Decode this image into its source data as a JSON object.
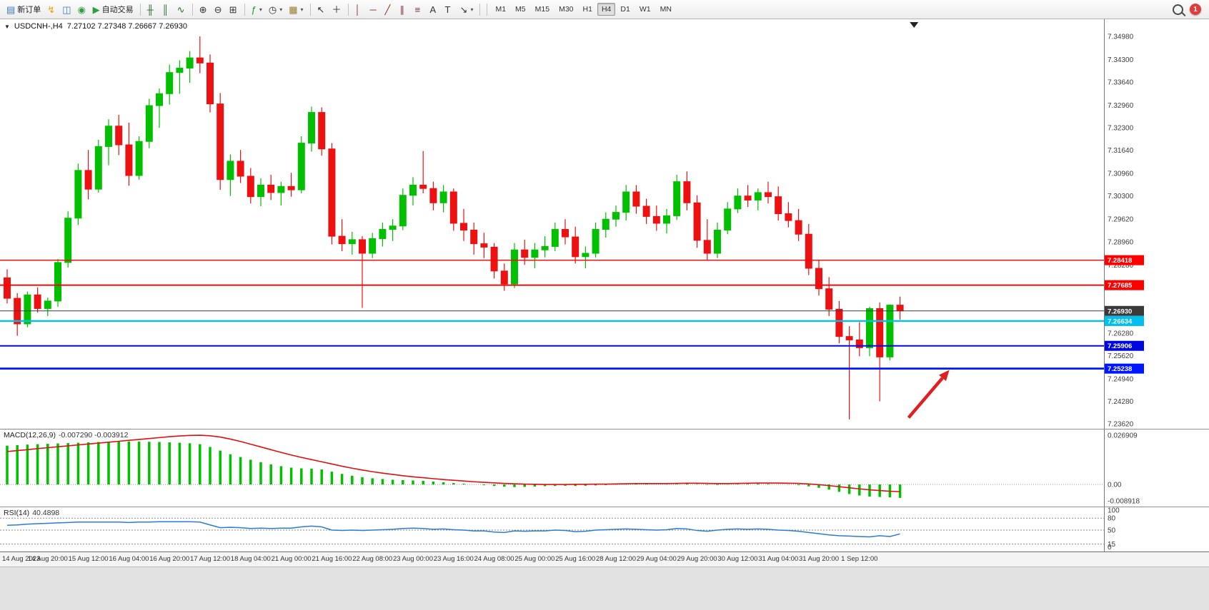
{
  "toolbar": {
    "buttons": [
      {
        "name": "new-order",
        "glyph": "▤",
        "glyph_color": "#3a78c2",
        "label": "新订单"
      },
      {
        "name": "one-click-trading",
        "glyph": "↯",
        "glyph_color": "#e8a000"
      },
      {
        "name": "market-watch",
        "glyph": "◫",
        "glyph_color": "#3a78c2"
      },
      {
        "name": "navigator",
        "glyph": "◉",
        "glyph_color": "#2f9e44"
      },
      {
        "name": "auto-trading",
        "glyph": "▶",
        "glyph_color": "#2f9e44",
        "label": "自动交易"
      },
      {
        "sep": true
      },
      {
        "name": "bar-chart-mode",
        "glyph": "╫",
        "glyph_color": "#2d6a2d"
      },
      {
        "name": "candlestick-mode",
        "glyph": "║",
        "glyph_color": "#2d6a2d"
      },
      {
        "name": "line-chart-mode",
        "glyph": "∿",
        "glyph_color": "#2d6a2d"
      },
      {
        "sep": true
      },
      {
        "name": "zoom-in",
        "glyph": "⊕",
        "glyph_color": "#333333"
      },
      {
        "name": "zoom-out",
        "glyph": "⊖",
        "glyph_color": "#333333"
      },
      {
        "name": "tile-windows",
        "glyph": "⊞",
        "glyph_color": "#333333"
      },
      {
        "sep": true
      },
      {
        "name": "indicators",
        "glyph": "ƒ",
        "glyph_color": "#1a9e1a",
        "dropdown": true
      },
      {
        "name": "periods",
        "glyph": "◷",
        "glyph_color": "#333333",
        "dropdown": true
      },
      {
        "name": "templates",
        "glyph": "▦",
        "glyph_color": "#9a7b2f",
        "dropdown": true
      },
      {
        "sep": true
      },
      {
        "name": "cursor",
        "glyph": "↖",
        "glyph_color": "#333333"
      },
      {
        "name": "crosshair",
        "glyph": "＋",
        "glyph_color": "#333333"
      },
      {
        "sep": true
      },
      {
        "name": "vertical-line",
        "glyph": "│",
        "glyph_color": "#8a2f2f"
      },
      {
        "name": "horizontal-line",
        "glyph": "─",
        "glyph_color": "#8a2f2f"
      },
      {
        "name": "trendline",
        "glyph": "╱",
        "glyph_color": "#8a2f2f"
      },
      {
        "name": "equidistant-channel",
        "glyph": "∥",
        "glyph_color": "#8a2f2f"
      },
      {
        "name": "fibonacci",
        "glyph": "≡",
        "glyph_color": "#8a2f2f"
      },
      {
        "name": "text",
        "glyph": "A",
        "glyph_color": "#333333"
      },
      {
        "name": "text-label",
        "glyph": "T",
        "glyph_color": "#333333"
      },
      {
        "name": "arrows",
        "glyph": "↘",
        "glyph_color": "#333333",
        "dropdown": true
      },
      {
        "sep": true
      }
    ],
    "timeframes": [
      "M1",
      "M5",
      "M15",
      "M30",
      "H1",
      "H4",
      "D1",
      "W1",
      "MN"
    ],
    "active_timeframe": "H4",
    "badge_count": "1"
  },
  "chart": {
    "symbol_period": "USDCNH-,H4",
    "ohlc": "7.27102 7.27348 7.26667 7.26930",
    "colors": {
      "bull": "#00c000",
      "bear": "#ee1111",
      "axis_line": "#777777",
      "current_price": "#3a3a3a"
    }
  },
  "indicators": {
    "macd": {
      "name": "MACD(12,26,9)",
      "values": "-0.007290 -0.003912"
    },
    "rsi": {
      "name": "RSI(14)",
      "value": "40.4898"
    }
  },
  "chart_data": [
    {
      "type": "candlestick",
      "symbol": "USDCNH-",
      "timeframe": "H4",
      "ohlc_order": [
        "open",
        "high",
        "low",
        "close"
      ],
      "candles": [
        [
          7.279,
          7.2815,
          7.2715,
          7.273
        ],
        [
          7.273,
          7.2745,
          7.262,
          7.2655
        ],
        [
          7.2655,
          7.275,
          7.2645,
          7.274
        ],
        [
          7.274,
          7.2762,
          7.2688,
          7.27
        ],
        [
          7.27,
          7.2732,
          7.2678,
          7.2722
        ],
        [
          7.2722,
          7.2845,
          7.2705,
          7.2835
        ],
        [
          7.2835,
          7.2985,
          7.282,
          7.2965
        ],
        [
          7.2965,
          7.3125,
          7.2945,
          7.3105
        ],
        [
          7.3105,
          7.3165,
          7.302,
          7.305
        ],
        [
          7.305,
          7.3195,
          7.304,
          7.3175
        ],
        [
          7.3175,
          7.3255,
          7.312,
          7.3235
        ],
        [
          7.3235,
          7.3268,
          7.315,
          7.318
        ],
        [
          7.318,
          7.3245,
          7.306,
          7.309
        ],
        [
          7.309,
          7.3205,
          7.3078,
          7.319
        ],
        [
          7.319,
          7.3315,
          7.317,
          7.3295
        ],
        [
          7.3295,
          7.3345,
          7.323,
          7.333
        ],
        [
          7.333,
          7.3415,
          7.3298,
          7.3392
        ],
        [
          7.3392,
          7.3428,
          7.333,
          7.3405
        ],
        [
          7.3405,
          7.3455,
          7.3362,
          7.3435
        ],
        [
          7.3435,
          7.3498,
          7.339,
          7.342
        ],
        [
          7.342,
          7.3445,
          7.3275,
          7.33
        ],
        [
          7.33,
          7.3332,
          7.3048,
          7.3078
        ],
        [
          7.3078,
          7.3152,
          7.303,
          7.3132
        ],
        [
          7.3132,
          7.3165,
          7.3068,
          7.3088
        ],
        [
          7.3088,
          7.3112,
          7.3008,
          7.3028
        ],
        [
          7.3028,
          7.3082,
          7.3,
          7.3062
        ],
        [
          7.3062,
          7.3092,
          7.3018,
          7.304
        ],
        [
          7.304,
          7.3072,
          7.3002,
          7.3058
        ],
        [
          7.3058,
          7.3098,
          7.3028,
          7.3048
        ],
        [
          7.3048,
          7.3205,
          7.3038,
          7.3185
        ],
        [
          7.3185,
          7.3292,
          7.316,
          7.3275
        ],
        [
          7.3275,
          7.329,
          7.3148,
          7.3168
        ],
        [
          7.3168,
          7.3185,
          7.2888,
          7.2912
        ],
        [
          7.2912,
          7.2962,
          7.2868,
          7.289
        ],
        [
          7.289,
          7.2925,
          7.2858,
          7.2902
        ],
        [
          7.2902,
          7.2912,
          7.2702,
          7.2862
        ],
        [
          7.2862,
          7.2922,
          7.2848,
          7.2905
        ],
        [
          7.2905,
          7.2952,
          7.2882,
          7.2932
        ],
        [
          7.2932,
          7.2962,
          7.2898,
          7.2942
        ],
        [
          7.2942,
          7.3052,
          7.293,
          7.3032
        ],
        [
          7.3032,
          7.3085,
          7.3002,
          7.3062
        ],
        [
          7.3062,
          7.3162,
          7.3038,
          7.3052
        ],
        [
          7.3052,
          7.3072,
          7.2988,
          7.301
        ],
        [
          7.301,
          7.3062,
          7.2982,
          7.3042
        ],
        [
          7.3042,
          7.3052,
          7.2928,
          7.295
        ],
        [
          7.295,
          7.2992,
          7.2898,
          7.293
        ],
        [
          7.293,
          7.2952,
          7.2858,
          7.289
        ],
        [
          7.289,
          7.2922,
          7.2848,
          7.288
        ],
        [
          7.288,
          7.2892,
          7.2788,
          7.281
        ],
        [
          7.281,
          7.2832,
          7.2752,
          7.2772
        ],
        [
          7.2772,
          7.2892,
          7.276,
          7.2872
        ],
        [
          7.2872,
          7.2902,
          7.2828,
          7.285
        ],
        [
          7.285,
          7.2892,
          7.2818,
          7.2872
        ],
        [
          7.2872,
          7.2912,
          7.285,
          7.2882
        ],
        [
          7.2882,
          7.2952,
          7.2868,
          7.2932
        ],
        [
          7.2932,
          7.2962,
          7.2888,
          7.291
        ],
        [
          7.291,
          7.294,
          7.2832,
          7.2852
        ],
        [
          7.2852,
          7.2882,
          7.2818,
          7.2862
        ],
        [
          7.2862,
          7.2952,
          7.285,
          7.2932
        ],
        [
          7.2932,
          7.2982,
          7.2908,
          7.2962
        ],
        [
          7.2962,
          7.3002,
          7.294,
          7.2982
        ],
        [
          7.2982,
          7.3062,
          7.2958,
          7.3042
        ],
        [
          7.3042,
          7.3062,
          7.2978,
          7.3
        ],
        [
          7.3,
          7.3022,
          7.2948,
          7.297
        ],
        [
          7.297,
          7.3002,
          7.2928,
          7.295
        ],
        [
          7.295,
          7.2992,
          7.292,
          7.2972
        ],
        [
          7.2972,
          7.3092,
          7.296,
          7.3072
        ],
        [
          7.3072,
          7.3102,
          7.2988,
          7.301
        ],
        [
          7.301,
          7.3032,
          7.2878,
          7.29
        ],
        [
          7.29,
          7.2962,
          7.284,
          7.2862
        ],
        [
          7.2862,
          7.2952,
          7.2848,
          7.293
        ],
        [
          7.293,
          7.3012,
          7.2918,
          7.2992
        ],
        [
          7.2992,
          7.3052,
          7.298,
          7.303
        ],
        [
          7.303,
          7.3062,
          7.2998,
          7.3018
        ],
        [
          7.3018,
          7.3052,
          7.2988,
          7.304
        ],
        [
          7.304,
          7.3072,
          7.3008,
          7.3028
        ],
        [
          7.3028,
          7.3058,
          7.2958,
          7.2978
        ],
        [
          7.2978,
          7.3012,
          7.2938,
          7.2958
        ],
        [
          7.2958,
          7.2992,
          7.2898,
          7.2918
        ],
        [
          7.2918,
          7.2948,
          7.2798,
          7.2818
        ],
        [
          7.2818,
          7.2842,
          7.2738,
          7.2758
        ],
        [
          7.2758,
          7.2792,
          7.2678,
          7.2698
        ],
        [
          7.2698,
          7.2722,
          7.2598,
          7.2618
        ],
        [
          7.2618,
          7.2648,
          7.2375,
          7.2608
        ],
        [
          7.2608,
          7.266,
          7.256,
          7.2585
        ],
        [
          7.2585,
          7.2705,
          7.256,
          7.27
        ],
        [
          7.27,
          7.2718,
          7.2428,
          7.2558
        ],
        [
          7.2558,
          7.2712,
          7.2548,
          7.271
        ],
        [
          7.271,
          7.2735,
          7.2667,
          7.2693
        ]
      ],
      "x_labels": [
        "14 Aug 2023",
        "14 Aug 20:00",
        "15 Aug 12:00",
        "16 Aug 04:00",
        "16 Aug 20:00",
        "17 Aug 12:00",
        "18 Aug 04:00",
        "21 Aug 00:00",
        "21 Aug 16:00",
        "22 Aug 08:00",
        "23 Aug 00:00",
        "23 Aug 16:00",
        "24 Aug 08:00",
        "25 Aug 00:00",
        "25 Aug 16:00",
        "28 Aug 12:00",
        "29 Aug 04:00",
        "29 Aug 20:00",
        "30 Aug 12:00",
        "31 Aug 04:00",
        "31 Aug 20:00",
        "1 Sep 12:00"
      ],
      "x_label_every": 4,
      "y_axis": {
        "min": 7.2362,
        "max": 7.3498,
        "ticks": [
          "7.34980",
          "7.34300",
          "7.33640",
          "7.32960",
          "7.32300",
          "7.31640",
          "7.30960",
          "7.30300",
          "7.29620",
          "7.28960",
          "7.28280",
          "7.27620",
          "7.26960",
          "7.26280",
          "7.25620",
          "7.24940",
          "7.24280",
          "7.23620"
        ]
      },
      "hlines": [
        {
          "price": 7.28418,
          "label": "7.28418",
          "color": "#ff0000",
          "width": 1.4
        },
        {
          "price": 7.27685,
          "label": "7.27685",
          "color": "#ff0000",
          "width": 1.8
        },
        {
          "price": 7.2693,
          "label": "7.26930",
          "color": "#3a3a3a",
          "width": 1.0,
          "role": "current-price"
        },
        {
          "price": 7.26634,
          "label": "7.26634",
          "color": "#00c0f0",
          "width": 2.4
        },
        {
          "price": 7.25906,
          "label": "7.25906",
          "color": "#0008e0",
          "width": 2.0
        },
        {
          "price": 7.25238,
          "label": "7.25238",
          "color": "#0018ff",
          "width": 2.8
        }
      ],
      "arrow": {
        "color": "#e02020",
        "width": 4.5,
        "tail": {
          "xf": 0.823,
          "price": 7.238
        },
        "tip": {
          "xf": 0.86,
          "price": 7.252
        }
      },
      "shift_marker_xf": 0.828
    },
    {
      "type": "bar+line",
      "name": "MACD(12,26,9)",
      "current_values": "-0.007290 -0.003912",
      "hist_color": "#00c000",
      "signal_color": "#e01010",
      "ylim": [
        -0.008918,
        0.026909
      ],
      "yticks": [
        "0.026909",
        "0.00",
        "-0.008918"
      ],
      "histogram": [
        0.0212,
        0.0215,
        0.0218,
        0.022,
        0.0222,
        0.0224,
        0.0226,
        0.0228,
        0.023,
        0.0232,
        0.0234,
        0.0235,
        0.0235,
        0.0234,
        0.0233,
        0.0232,
        0.023,
        0.0228,
        0.0225,
        0.022,
        0.0205,
        0.0185,
        0.0165,
        0.015,
        0.0135,
        0.0122,
        0.011,
        0.01,
        0.0092,
        0.0088,
        0.0086,
        0.0082,
        0.007,
        0.0058,
        0.0048,
        0.004,
        0.0034,
        0.003,
        0.0026,
        0.0024,
        0.0022,
        0.002,
        0.0016,
        0.0012,
        0.0008,
        0.0004,
        0.0,
        -0.0004,
        -0.0008,
        -0.0012,
        -0.0014,
        -0.0013,
        -0.0011,
        -0.0009,
        -0.0008,
        -0.0007,
        -0.0008,
        -0.0007,
        -0.0005,
        -0.0003,
        -0.0001,
        0.0002,
        0.0003,
        0.0002,
        0.0,
        -0.0001,
        0.0002,
        0.0004,
        0.0002,
        -0.0002,
        -0.0003,
        -0.0001,
        0.0002,
        0.0003,
        0.0004,
        0.0003,
        0.0001,
        -0.0001,
        -0.0004,
        -0.001,
        -0.0018,
        -0.0028,
        -0.004,
        -0.0052,
        -0.006,
        -0.0066,
        -0.0068,
        -0.007,
        -0.0073
      ],
      "signal": [
        0.018,
        0.0185,
        0.019,
        0.0196,
        0.0201,
        0.0206,
        0.0211,
        0.0216,
        0.0221,
        0.0226,
        0.0231,
        0.0236,
        0.0241,
        0.0246,
        0.0251,
        0.0256,
        0.0261,
        0.0265,
        0.0268,
        0.0269,
        0.0266,
        0.0259,
        0.0248,
        0.0235,
        0.022,
        0.0205,
        0.019,
        0.0175,
        0.0161,
        0.0148,
        0.0136,
        0.0124,
        0.0112,
        0.01,
        0.0089,
        0.0079,
        0.007,
        0.0062,
        0.0055,
        0.0048,
        0.0042,
        0.0037,
        0.0032,
        0.0027,
        0.0023,
        0.0019,
        0.0015,
        0.0012,
        0.0009,
        0.0006,
        0.0004,
        0.0002,
        0.0001,
        0.0,
        0.0,
        0.0,
        0.0001,
        0.0001,
        0.0002,
        0.0002,
        0.0003,
        0.0004,
        0.0005,
        0.0005,
        0.0005,
        0.0005,
        0.0006,
        0.0007,
        0.0007,
        0.0006,
        0.0005,
        0.0005,
        0.0006,
        0.0007,
        0.0008,
        0.0008,
        0.0008,
        0.0007,
        0.0006,
        0.0003,
        -0.0001,
        -0.0006,
        -0.0012,
        -0.0018,
        -0.0024,
        -0.0029,
        -0.0033,
        -0.0037,
        -0.0039
      ]
    },
    {
      "type": "line",
      "name": "RSI(14)",
      "current_value": "40.4898",
      "line_color": "#2b7cd3",
      "ylim": [
        0,
        100
      ],
      "levels": [
        80,
        50,
        15
      ],
      "yticks": [
        {
          "v": 100,
          "t": "100"
        },
        {
          "v": 80,
          "t": "80"
        },
        {
          "v": 50,
          "t": "50"
        },
        {
          "v": 15,
          "t": "15"
        },
        {
          "v": 0,
          "t": "0"
        }
      ],
      "values": [
        62,
        63,
        65,
        66,
        67,
        68,
        69,
        70,
        70,
        70,
        70,
        70,
        69,
        70,
        70,
        71,
        71,
        71,
        71,
        70,
        63,
        56,
        57,
        56,
        54,
        55,
        54,
        55,
        55,
        58,
        60,
        58,
        50,
        49,
        50,
        49,
        50,
        51,
        52,
        54,
        55,
        54,
        52,
        53,
        51,
        50,
        48,
        48,
        45,
        44,
        48,
        47,
        48,
        48,
        50,
        49,
        46,
        47,
        50,
        51,
        52,
        53,
        52,
        51,
        50,
        51,
        54,
        53,
        49,
        47,
        50,
        52,
        53,
        52,
        53,
        52,
        50,
        49,
        47,
        44,
        41,
        38,
        36,
        35,
        34,
        33,
        36,
        34,
        40.49
      ]
    }
  ]
}
